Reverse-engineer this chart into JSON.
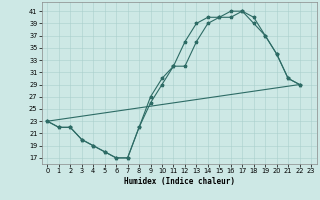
{
  "xlabel": "Humidex (Indice chaleur)",
  "background_color": "#cde8e5",
  "line_color": "#2d6b65",
  "grid_color": "#aacfcc",
  "xlim": [
    -0.5,
    23.5
  ],
  "ylim": [
    16,
    42.5
  ],
  "xticks": [
    0,
    1,
    2,
    3,
    4,
    5,
    6,
    7,
    8,
    9,
    10,
    11,
    12,
    13,
    14,
    15,
    16,
    17,
    18,
    19,
    20,
    21,
    22,
    23
  ],
  "yticks": [
    17,
    19,
    21,
    23,
    25,
    27,
    29,
    31,
    33,
    35,
    37,
    39,
    41
  ],
  "curve1_x": [
    0,
    1,
    2,
    3,
    4,
    5,
    6,
    7,
    8,
    9,
    10,
    11,
    12,
    13,
    14,
    15,
    16,
    17,
    18,
    19,
    20,
    21,
    22
  ],
  "curve1_y": [
    23,
    22,
    22,
    20,
    19,
    18,
    17,
    17,
    22,
    27,
    30,
    32,
    36,
    39,
    40,
    40,
    41,
    41,
    39,
    37,
    34,
    30,
    29
  ],
  "curve2_x": [
    0,
    1,
    2,
    3,
    4,
    5,
    6,
    7,
    8,
    9,
    10,
    11,
    12,
    13,
    14,
    15,
    16,
    17,
    18,
    19,
    20,
    21,
    22
  ],
  "curve2_y": [
    23,
    22,
    22,
    20,
    19,
    18,
    17,
    17,
    22,
    26,
    29,
    32,
    32,
    36,
    39,
    40,
    40,
    41,
    40,
    37,
    34,
    30,
    29
  ],
  "line_x": [
    0,
    22
  ],
  "line_y": [
    23,
    29
  ],
  "xlabel_fontsize": 5.5,
  "tick_fontsize": 4.8
}
